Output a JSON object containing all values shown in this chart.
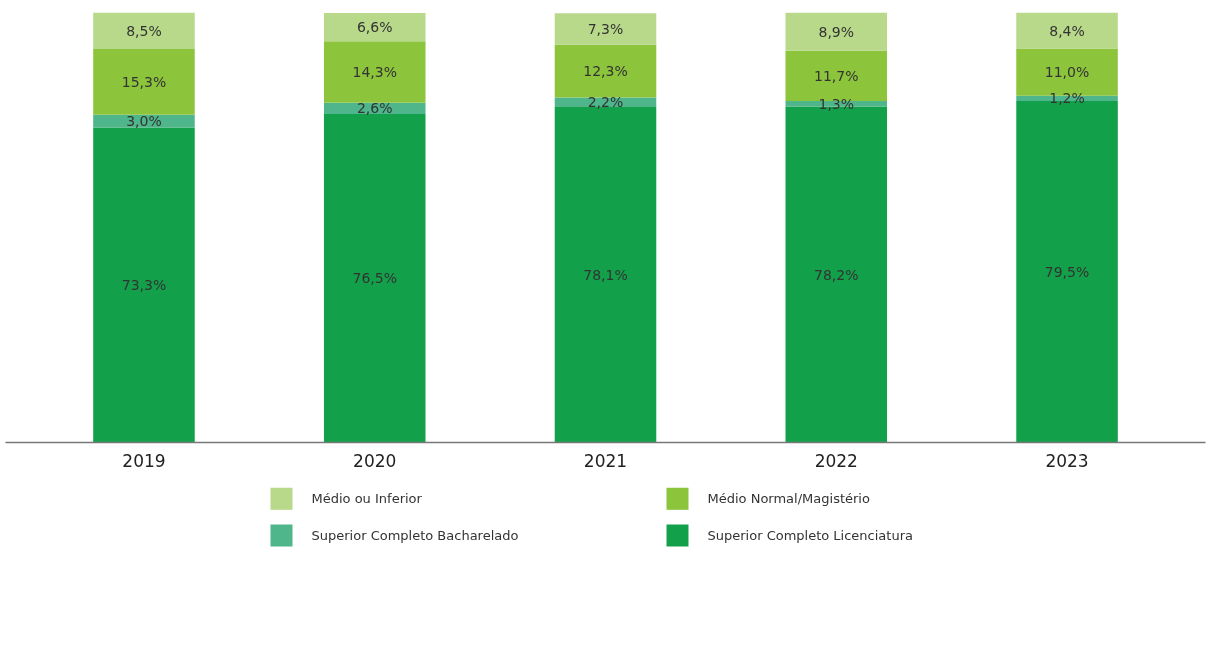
{
  "chart_data": {
    "type": "bar",
    "stacked": true,
    "categories": [
      "2019",
      "2020",
      "2021",
      "2022",
      "2023"
    ],
    "tick_labels": "x",
    "legend": "bottom",
    "series": [
      {
        "name": "Superior Completo Licenciatura",
        "color": "#12a04a",
        "values": [
          73.3,
          76.5,
          78.1,
          78.2,
          79.5
        ],
        "value_labels": [
          "73,3%",
          "76,5%",
          "78,1%",
          "78,2%",
          "79,5%"
        ]
      },
      {
        "name": "Superior Completo Bacharelado",
        "color": "#4fb58a",
        "values": [
          3.0,
          2.6,
          2.2,
          1.3,
          1.2
        ],
        "value_labels": [
          "3,0%",
          "2,6%",
          "2,2%",
          "1,3%",
          "1,2%"
        ]
      },
      {
        "name": "Médio Normal/Magistério",
        "color": "#8cc43c",
        "values": [
          15.3,
          14.3,
          12.3,
          11.7,
          11.0
        ],
        "value_labels": [
          "15,3%",
          "14,3%",
          "12,3%",
          "11,7%",
          "11,0%"
        ]
      },
      {
        "name": "Médio ou Inferior",
        "color": "#b8d98a",
        "values": [
          8.5,
          6.6,
          7.3,
          8.9,
          8.4
        ],
        "value_labels": [
          "8,5%",
          "6,6%",
          "7,3%",
          "8,9%",
          "8,4%"
        ]
      }
    ]
  }
}
